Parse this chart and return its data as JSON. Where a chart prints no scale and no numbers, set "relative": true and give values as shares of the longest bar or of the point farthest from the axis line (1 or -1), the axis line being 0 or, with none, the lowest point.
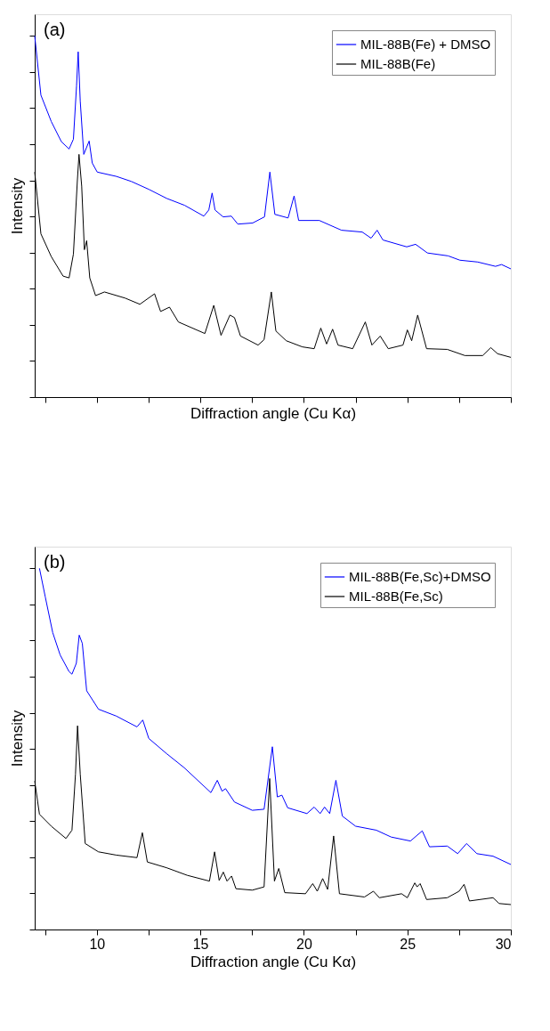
{
  "chart_data": [
    {
      "type": "line",
      "xlabel": "Diffraction angle (Cu Kα)",
      "ylabel": "Intensity",
      "relative": true,
      "annotations": [
        "(a)"
      ],
      "legend": "top right",
      "grid": false,
      "tick_labels": false,
      "xlim": [
        7,
        30
      ],
      "xticks": [
        {
          "value": 7.5,
          "label": null
        },
        10,
        {
          "value": 12.5,
          "label": null
        },
        15,
        {
          "value": 17.5,
          "label": null
        },
        20,
        {
          "value": 22.5,
          "label": null
        },
        25,
        {
          "value": 27.5,
          "label": null
        },
        30
      ],
      "series": [
        {
          "name": "MIL-88B(Fe) + DMSO",
          "color": "#0000ff",
          "x": [
            7.0,
            7.3,
            7.8,
            8.29,
            8.66,
            8.87,
            9.02,
            9.1,
            9.2,
            9.37,
            9.63,
            9.78,
            10.02,
            10.95,
            11.67,
            12.52,
            13.38,
            14.24,
            15.17,
            15.41,
            15.57,
            15.71,
            16.1,
            16.5,
            16.81,
            17.53,
            18.1,
            18.36,
            18.6,
            19.24,
            19.53,
            19.75,
            20.75,
            21.82,
            22.82,
            23.25,
            23.54,
            23.82,
            24.97,
            25.4,
            25.97,
            26.97,
            27.54,
            28.4,
            29.26,
            29.55,
            30.0
          ],
          "values": [
            1.0,
            0.836,
            0.763,
            0.707,
            0.687,
            0.714,
            0.861,
            0.956,
            0.819,
            0.672,
            0.709,
            0.648,
            0.623,
            0.611,
            0.597,
            0.575,
            0.55,
            0.531,
            0.501,
            0.518,
            0.565,
            0.518,
            0.499,
            0.501,
            0.479,
            0.482,
            0.499,
            0.623,
            0.506,
            0.496,
            0.557,
            0.489,
            0.489,
            0.462,
            0.457,
            0.44,
            0.462,
            0.435,
            0.416,
            0.423,
            0.399,
            0.391,
            0.379,
            0.374,
            0.362,
            0.367,
            0.355
          ]
        },
        {
          "name": "MIL-88B(Fe)",
          "color": "#000000",
          "x": [
            7.0,
            7.3,
            7.8,
            8.37,
            8.66,
            8.87,
            9.06,
            9.14,
            9.27,
            9.4,
            9.51,
            9.66,
            9.94,
            10.37,
            11.37,
            12.08,
            12.79,
            13.08,
            13.51,
            13.94,
            15.22,
            15.65,
            16.0,
            16.43,
            16.65,
            16.94,
            17.79,
            18.08,
            18.43,
            18.65,
            19.15,
            19.93,
            20.5,
            20.82,
            21.1,
            21.39,
            21.65,
            22.36,
            22.97,
            23.29,
            23.69,
            24.08,
            24.79,
            25.0,
            25.21,
            25.5,
            25.93,
            26.93,
            27.78,
            28.64,
            29.03,
            29.36,
            30.0
          ],
          "values": [
            0.623,
            0.452,
            0.389,
            0.335,
            0.33,
            0.396,
            0.599,
            0.672,
            0.584,
            0.408,
            0.433,
            0.33,
            0.281,
            0.291,
            0.274,
            0.257,
            0.286,
            0.237,
            0.249,
            0.208,
            0.176,
            0.254,
            0.171,
            0.227,
            0.22,
            0.169,
            0.144,
            0.159,
            0.291,
            0.183,
            0.156,
            0.139,
            0.134,
            0.191,
            0.147,
            0.188,
            0.144,
            0.134,
            0.208,
            0.144,
            0.169,
            0.134,
            0.144,
            0.186,
            0.156,
            0.227,
            0.134,
            0.132,
            0.115,
            0.115,
            0.137,
            0.12,
            0.11
          ]
        }
      ]
    },
    {
      "type": "line",
      "xlabel": "Diffraction angle (Cu Kα)",
      "ylabel": "Intensity",
      "relative": true,
      "annotations": [
        "(b)"
      ],
      "legend": "top right",
      "grid": false,
      "tick_labels": "x",
      "xlim": [
        7,
        30
      ],
      "xticks": [
        {
          "value": 7.5,
          "label": null
        },
        10,
        {
          "value": 12.5,
          "label": null
        },
        15,
        {
          "value": 17.5,
          "label": null
        },
        20,
        {
          "value": 22.5,
          "label": null
        },
        25,
        {
          "value": 27.5,
          "label": null
        },
        30
      ],
      "series": [
        {
          "name": "MIL-88B(Fe,Sc)+DMSO",
          "color": "#0000ff",
          "x": [
            7.23,
            7.51,
            7.87,
            8.23,
            8.66,
            8.8,
            9.01,
            9.15,
            9.3,
            9.51,
            10.08,
            10.94,
            11.94,
            12.22,
            12.51,
            13.37,
            14.22,
            15.08,
            15.51,
            15.82,
            16.05,
            16.22,
            16.65,
            17.51,
            18.08,
            18.48,
            18.72,
            18.94,
            19.22,
            20.15,
            20.5,
            20.79,
            21.0,
            21.25,
            21.55,
            21.86,
            22.5,
            23.5,
            24.22,
            25.15,
            25.72,
            26.07,
            26.93,
            27.43,
            27.86,
            28.36,
            29.14,
            30.0
          ],
          "values": [
            1.0,
            0.921,
            0.822,
            0.76,
            0.714,
            0.707,
            0.737,
            0.815,
            0.792,
            0.661,
            0.61,
            0.591,
            0.561,
            0.58,
            0.529,
            0.487,
            0.448,
            0.402,
            0.379,
            0.413,
            0.383,
            0.39,
            0.353,
            0.33,
            0.333,
            0.506,
            0.367,
            0.372,
            0.337,
            0.321,
            0.339,
            0.321,
            0.339,
            0.321,
            0.413,
            0.314,
            0.286,
            0.275,
            0.256,
            0.245,
            0.273,
            0.229,
            0.231,
            0.21,
            0.238,
            0.21,
            0.203,
            0.18
          ]
        },
        {
          "name": "MIL-88B(Fe,Sc)",
          "color": "#000000",
          "x": [
            7.0,
            7.23,
            7.8,
            8.51,
            8.8,
            8.97,
            9.07,
            9.2,
            9.44,
            10.08,
            10.94,
            11.94,
            12.2,
            12.44,
            13.37,
            14.37,
            15.44,
            15.69,
            15.91,
            16.11,
            16.29,
            16.51,
            16.72,
            17.51,
            18.08,
            18.35,
            18.58,
            18.79,
            19.08,
            20.08,
            20.43,
            20.65,
            20.91,
            21.15,
            21.44,
            21.72,
            22.93,
            23.36,
            23.65,
            24.72,
            25.0,
            25.36,
            25.47,
            25.62,
            25.93,
            26.93,
            27.5,
            27.74,
            28.0,
            29.14,
            29.43,
            30.0
          ],
          "values": [
            0.411,
            0.319,
            0.286,
            0.252,
            0.275,
            0.43,
            0.564,
            0.43,
            0.238,
            0.215,
            0.206,
            0.199,
            0.268,
            0.187,
            0.171,
            0.15,
            0.134,
            0.215,
            0.136,
            0.159,
            0.134,
            0.148,
            0.113,
            0.109,
            0.118,
            0.418,
            0.134,
            0.169,
            0.102,
            0.099,
            0.127,
            0.106,
            0.141,
            0.111,
            0.259,
            0.099,
            0.09,
            0.106,
            0.088,
            0.099,
            0.088,
            0.129,
            0.118,
            0.127,
            0.083,
            0.088,
            0.106,
            0.125,
            0.079,
            0.088,
            0.072,
            0.069
          ]
        }
      ]
    }
  ]
}
